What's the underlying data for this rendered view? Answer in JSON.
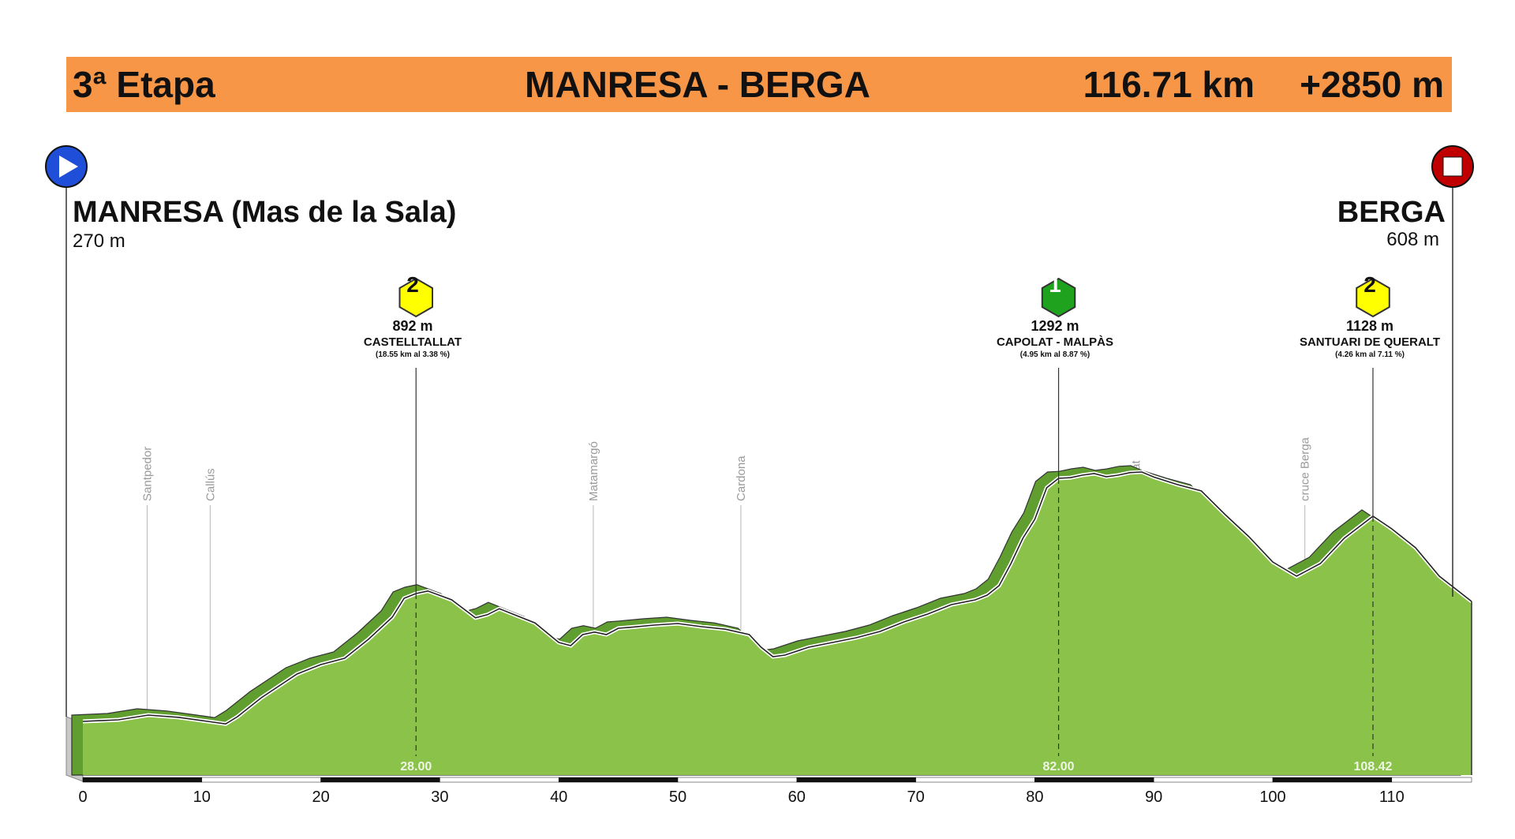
{
  "header": {
    "stage_label": "3ª Etapa",
    "route": "MANRESA - BERGA",
    "distance": "116.71 km",
    "elevation_gain": "+2850 m",
    "banner_color": "#f79646"
  },
  "start": {
    "name": "MANRESA (Mas de la Sala)",
    "altitude": "270 m",
    "icon": "play-icon",
    "color": "#1f4fd8"
  },
  "finish": {
    "name": "BERGA",
    "altitude": "608 m",
    "icon": "stop-icon",
    "color": "#c00000"
  },
  "colors": {
    "profile_fill": "#8bc34a",
    "profile_ridge": "#5f9e2f",
    "base_band": "#6a9c3a",
    "cat2": "#ffff00",
    "cat1": "#1fa31f"
  },
  "climbs": [
    {
      "category": "2",
      "km": 28.0,
      "km_label": "28.00",
      "altitude": "892 m",
      "name": "CASTELLTALLAT",
      "detail": "(18.55 km  al  3.38 %)"
    },
    {
      "category": "1",
      "km": 82.0,
      "km_label": "82.00",
      "altitude": "1292 m",
      "name": "CAPOLAT - MALPÀS",
      "detail": "(4.95 km  al  8.87 %)"
    },
    {
      "category": "2",
      "km": 108.42,
      "km_label": "108.42",
      "altitude": "1128 m",
      "name": "SANTUARI DE QUERALT",
      "detail": "(4.26 km  al  7.11 %)"
    }
  ],
  "waypoints": [
    {
      "name": "Santpedor",
      "km": 5.4
    },
    {
      "name": "Callús",
      "km": 10.7
    },
    {
      "name": "Matamargó",
      "km": 42.9
    },
    {
      "name": "Cardona",
      "km": 55.3
    },
    {
      "name": "Capolat",
      "km": 88.5
    },
    {
      "name": "cruce Berga",
      "km": 102.7
    }
  ],
  "chart_data": {
    "type": "area",
    "title": "MANRESA - BERGA",
    "xlabel": "",
    "ylabel": "",
    "xlim": [
      0,
      116.71
    ],
    "x_ticks": [
      0,
      10,
      20,
      30,
      40,
      50,
      60,
      70,
      80,
      90,
      100,
      110
    ],
    "series": [
      {
        "x": [
          0,
          3,
          5.5,
          8,
          10.5,
          12,
          13,
          15,
          18,
          20,
          22,
          24,
          26,
          27,
          28,
          29,
          31,
          33,
          34,
          35,
          36,
          38,
          40,
          41,
          42,
          43,
          44,
          45,
          46,
          48,
          50,
          51,
          52,
          54,
          56,
          57,
          58,
          59,
          61,
          63,
          65,
          67,
          69,
          71,
          73,
          75,
          76,
          77,
          78,
          79,
          80,
          81,
          82,
          83,
          84,
          85,
          86,
          87,
          88,
          89,
          90,
          92,
          94,
          96,
          98,
          100,
          102,
          104,
          106,
          108.42,
          110,
          112,
          114,
          116.71
        ],
        "y": [
          270,
          275,
          290,
          283,
          270,
          262,
          285,
          345,
          420,
          450,
          470,
          530,
          600,
          660,
          675,
          683,
          655,
          598,
          608,
          627,
          612,
          582,
          520,
          510,
          545,
          553,
          545,
          565,
          568,
          575,
          580,
          575,
          570,
          562,
          545,
          505,
          475,
          480,
          505,
          520,
          535,
          555,
          585,
          610,
          640,
          655,
          670,
          700,
          770,
          850,
          910,
          1010,
          1040,
          1042,
          1050,
          1055,
          1045,
          1050,
          1058,
          1060,
          1044,
          1020,
          1000,
          925,
          855,
          775,
          730,
          770,
          850,
          920,
          880,
          820,
          730,
          650
        ]
      }
    ],
    "grid": false,
    "legend": "none"
  }
}
